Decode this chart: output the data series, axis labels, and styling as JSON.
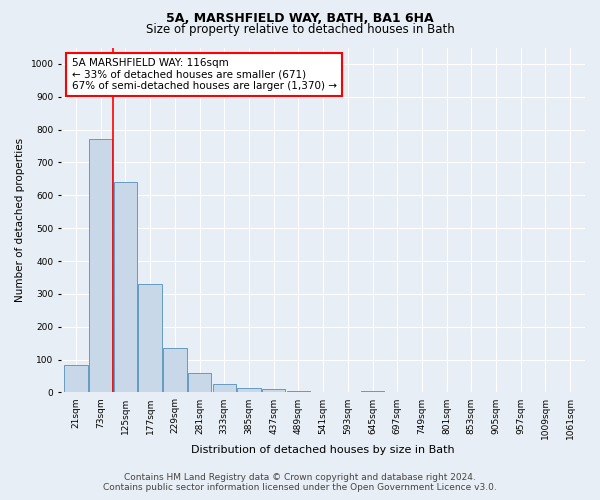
{
  "title": "5A, MARSHFIELD WAY, BATH, BA1 6HA",
  "subtitle": "Size of property relative to detached houses in Bath",
  "xlabel": "Distribution of detached houses by size in Bath",
  "ylabel": "Number of detached properties",
  "footer_line1": "Contains HM Land Registry data © Crown copyright and database right 2024.",
  "footer_line2": "Contains public sector information licensed under the Open Government Licence v3.0.",
  "bar_labels": [
    "21sqm",
    "73sqm",
    "125sqm",
    "177sqm",
    "229sqm",
    "281sqm",
    "333sqm",
    "385sqm",
    "437sqm",
    "489sqm",
    "541sqm",
    "593sqm",
    "645sqm",
    "697sqm",
    "749sqm",
    "801sqm",
    "853sqm",
    "905sqm",
    "957sqm",
    "1009sqm",
    "1061sqm"
  ],
  "bar_values": [
    85,
    770,
    640,
    330,
    135,
    60,
    25,
    15,
    10,
    5,
    0,
    0,
    5,
    0,
    0,
    0,
    0,
    0,
    0,
    0,
    0
  ],
  "bar_color": "#c8d8e8",
  "bar_edge_color": "#5090b8",
  "bar_edge_width": 0.6,
  "vline_x_index": 1.5,
  "vline_color": "red",
  "vline_linewidth": 1.2,
  "annotation_text": "5A MARSHFIELD WAY: 116sqm\n← 33% of detached houses are smaller (671)\n67% of semi-detached houses are larger (1,370) →",
  "annotation_box_color": "white",
  "annotation_box_edgecolor": "red",
  "ylim": [
    0,
    1050
  ],
  "yticks": [
    0,
    100,
    200,
    300,
    400,
    500,
    600,
    700,
    800,
    900,
    1000
  ],
  "background_color": "#e8eef5",
  "plot_bg_color": "#e8eef5",
  "title_fontsize": 9,
  "subtitle_fontsize": 8.5,
  "xlabel_fontsize": 8,
  "ylabel_fontsize": 7.5,
  "tick_fontsize": 6.5,
  "annotation_fontsize": 7.5,
  "footer_fontsize": 6.5
}
